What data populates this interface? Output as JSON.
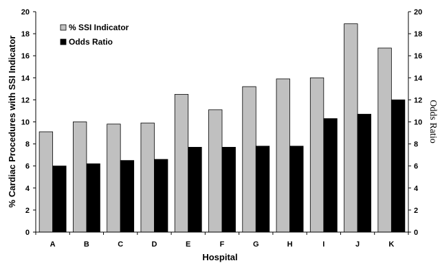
{
  "chart_data": {
    "type": "bar",
    "title": "",
    "categories": [
      "A",
      "B",
      "C",
      "D",
      "E",
      "F",
      "G",
      "H",
      "I",
      "J",
      "K"
    ],
    "series": [
      {
        "name": "% SSI Indicator",
        "color": "#c0c0c0",
        "values": [
          9.1,
          10.0,
          9.8,
          9.9,
          12.5,
          11.1,
          13.2,
          13.9,
          14.0,
          18.9,
          16.7
        ]
      },
      {
        "name": "Odds Ratio",
        "color": "#000000",
        "values": [
          6.0,
          6.2,
          6.5,
          6.6,
          7.7,
          7.7,
          7.8,
          7.8,
          10.3,
          10.7,
          12.0
        ]
      }
    ],
    "xlabel": "Hospital",
    "ylabel": "% Cardiac Procedures with SSI Indicator",
    "y2label": "Odds Ratio",
    "ylim": [
      0,
      20
    ],
    "y2lim": [
      0,
      20
    ],
    "yticks": [
      "0",
      "2",
      "4",
      "6",
      "8",
      "10",
      "12",
      "14",
      "16",
      "18",
      "20"
    ],
    "y2ticks": [
      "0",
      "2",
      "4",
      "6",
      "8",
      "10",
      "12",
      "14",
      "16",
      "18",
      "20"
    ],
    "grid": false,
    "legend": "top-left"
  }
}
